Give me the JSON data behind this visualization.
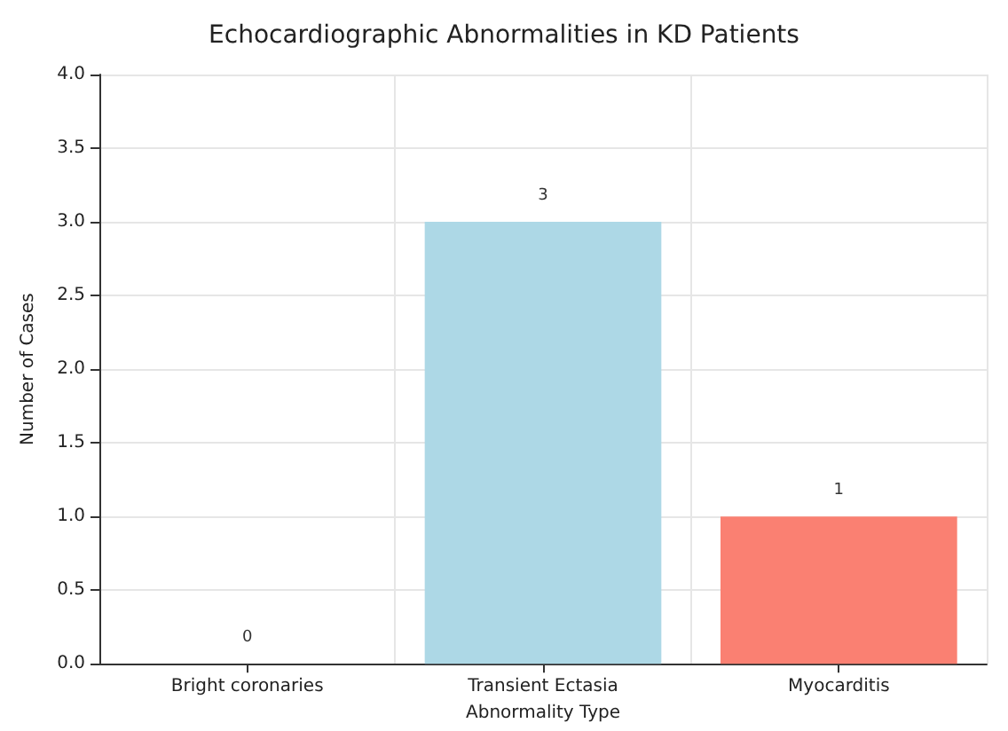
{
  "chart_data": {
    "type": "bar",
    "title": "Echocardiographic Abnormalities in KD Patients",
    "xlabel": "Abnormality Type",
    "ylabel": "Number of Cases",
    "categories": [
      "Bright coronaries",
      "Transient Ectasia",
      "Myocarditis"
    ],
    "values": [
      0,
      3,
      1
    ],
    "colors": [
      "#90ee90",
      "#add8e6",
      "#fa8072"
    ],
    "ylim": [
      0,
      4
    ],
    "yticks": [
      {
        "value": 0,
        "label": "0.0"
      },
      {
        "value": 0.5,
        "label": "0.5"
      },
      {
        "value": 1,
        "label": "1.0"
      },
      {
        "value": 1.5,
        "label": "1.5"
      },
      {
        "value": 2,
        "label": "2.0"
      },
      {
        "value": 2.5,
        "label": "2.5"
      },
      {
        "value": 3,
        "label": "3.0"
      },
      {
        "value": 3.5,
        "label": "3.5"
      },
      {
        "value": 4,
        "label": "4.0"
      }
    ],
    "data_labels": true,
    "grid": true
  }
}
